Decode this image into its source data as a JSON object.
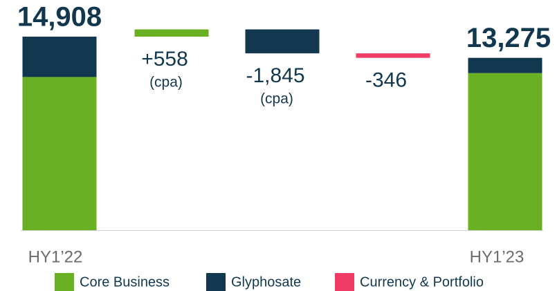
{
  "chart_data": {
    "type": "waterfall",
    "categories": [
      "HY1’22",
      null,
      null,
      null,
      "HY1’23"
    ],
    "series": [
      {
        "name": "Core Business",
        "color": "#6ab023",
        "values": [
          11800,
          558,
          null,
          null,
          12100
        ],
        "value_labels": [
          null,
          "+558",
          null,
          null,
          null
        ]
      },
      {
        "name": "Glyphosate",
        "color": "#12384f",
        "values": [
          3108,
          null,
          -1845,
          null,
          1175
        ],
        "value_labels": [
          null,
          null,
          "-1,845",
          null,
          null
        ]
      },
      {
        "name": "Currency & Portfolio",
        "color": "#f03b66",
        "values": [
          null,
          null,
          null,
          -346,
          null
        ],
        "value_labels": [
          null,
          null,
          null,
          "-346",
          null
        ]
      }
    ],
    "totals": [
      14908,
      null,
      null,
      null,
      13275
    ],
    "total_labels": [
      "14,908",
      null,
      null,
      null,
      "13,275"
    ],
    "annotations": [
      null,
      "(cpa)",
      "(cpa)",
      null,
      null
    ],
    "ylim": [
      0,
      16000
    ]
  }
}
